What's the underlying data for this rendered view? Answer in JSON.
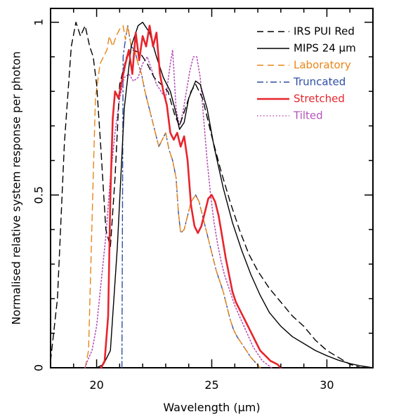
{
  "chart_data": {
    "type": "line",
    "title": "",
    "xlabel": "Wavelength (μm)",
    "ylabel": "Normalised relative system response per photon",
    "xlim": [
      18,
      32
    ],
    "ylim": [
      0,
      1.04
    ],
    "x_ticks": [
      20,
      25,
      30
    ],
    "x_tick_labels": [
      "20",
      "25",
      "30"
    ],
    "y_ticks": [
      0,
      0.5,
      1
    ],
    "y_tick_labels": [
      "0",
      "0.5",
      "1"
    ],
    "grid": false,
    "legend_position": "top-right",
    "series": [
      {
        "name": "IRS PUI Red",
        "color": "#000000",
        "dash": "long-dash",
        "points": [
          [
            18.0,
            0.02
          ],
          [
            18.3,
            0.2
          ],
          [
            18.6,
            0.65
          ],
          [
            18.9,
            0.93
          ],
          [
            19.1,
            1.0
          ],
          [
            19.3,
            0.96
          ],
          [
            19.5,
            0.99
          ],
          [
            19.7,
            0.93
          ],
          [
            19.85,
            0.9
          ],
          [
            20.0,
            0.82
          ],
          [
            20.2,
            0.62
          ],
          [
            20.4,
            0.4
          ],
          [
            20.6,
            0.35
          ],
          [
            20.8,
            0.55
          ],
          [
            21.0,
            0.82
          ],
          [
            21.3,
            0.9
          ],
          [
            21.6,
            0.92
          ],
          [
            21.9,
            0.91
          ],
          [
            22.2,
            0.88
          ],
          [
            22.5,
            0.84
          ],
          [
            22.8,
            0.82
          ],
          [
            23.1,
            0.8
          ],
          [
            23.4,
            0.73
          ],
          [
            23.6,
            0.7
          ],
          [
            23.8,
            0.74
          ],
          [
            24.1,
            0.8
          ],
          [
            24.3,
            0.82
          ],
          [
            24.6,
            0.78
          ],
          [
            25.0,
            0.67
          ],
          [
            25.4,
            0.57
          ],
          [
            25.8,
            0.48
          ],
          [
            26.2,
            0.4
          ],
          [
            26.6,
            0.33
          ],
          [
            27.0,
            0.28
          ],
          [
            27.5,
            0.23
          ],
          [
            28.0,
            0.19
          ],
          [
            28.5,
            0.15
          ],
          [
            29.0,
            0.12
          ],
          [
            29.5,
            0.08
          ],
          [
            30.0,
            0.05
          ],
          [
            30.5,
            0.03
          ],
          [
            31.0,
            0.01
          ],
          [
            31.5,
            0.0
          ]
        ]
      },
      {
        "name": "MIPS 24 μm",
        "color": "#000000",
        "dash": "solid",
        "points": [
          [
            20.0,
            0.0
          ],
          [
            20.3,
            0.01
          ],
          [
            20.6,
            0.05
          ],
          [
            20.9,
            0.35
          ],
          [
            21.2,
            0.75
          ],
          [
            21.5,
            0.93
          ],
          [
            21.8,
            0.99
          ],
          [
            22.0,
            1.0
          ],
          [
            22.3,
            0.97
          ],
          [
            22.6,
            0.9
          ],
          [
            22.9,
            0.84
          ],
          [
            23.2,
            0.8
          ],
          [
            23.4,
            0.75
          ],
          [
            23.6,
            0.69
          ],
          [
            23.8,
            0.71
          ],
          [
            24.0,
            0.78
          ],
          [
            24.3,
            0.83
          ],
          [
            24.5,
            0.82
          ],
          [
            24.8,
            0.75
          ],
          [
            25.1,
            0.64
          ],
          [
            25.5,
            0.52
          ],
          [
            25.9,
            0.42
          ],
          [
            26.3,
            0.34
          ],
          [
            26.7,
            0.27
          ],
          [
            27.1,
            0.21
          ],
          [
            27.5,
            0.16
          ],
          [
            28.0,
            0.12
          ],
          [
            28.5,
            0.09
          ],
          [
            29.0,
            0.07
          ],
          [
            29.5,
            0.05
          ],
          [
            30.0,
            0.035
          ],
          [
            30.5,
            0.022
          ],
          [
            31.0,
            0.012
          ],
          [
            31.5,
            0.005
          ],
          [
            32.0,
            0.0
          ]
        ]
      },
      {
        "name": "Laboratory",
        "color": "#e8861a",
        "dash": "long-dash",
        "points": [
          [
            19.5,
            0.0
          ],
          [
            19.65,
            0.05
          ],
          [
            19.75,
            0.3
          ],
          [
            19.85,
            0.55
          ],
          [
            19.95,
            0.78
          ],
          [
            20.05,
            0.83
          ],
          [
            20.15,
            0.88
          ],
          [
            20.3,
            0.9
          ],
          [
            20.45,
            0.92
          ],
          [
            20.55,
            0.96
          ],
          [
            20.7,
            0.93
          ],
          [
            20.85,
            0.96
          ],
          [
            21.0,
            0.98
          ],
          [
            21.15,
            0.99
          ],
          [
            21.25,
            0.95
          ],
          [
            21.35,
            0.99
          ],
          [
            21.5,
            0.93
          ],
          [
            21.65,
            0.92
          ],
          [
            21.8,
            0.88
          ],
          [
            21.95,
            0.85
          ],
          [
            22.1,
            0.8
          ],
          [
            22.25,
            0.76
          ],
          [
            22.4,
            0.72
          ],
          [
            22.55,
            0.68
          ],
          [
            22.7,
            0.64
          ],
          [
            22.85,
            0.66
          ],
          [
            23.0,
            0.68
          ],
          [
            23.15,
            0.63
          ],
          [
            23.3,
            0.6
          ],
          [
            23.45,
            0.55
          ],
          [
            23.55,
            0.45
          ],
          [
            23.65,
            0.39
          ],
          [
            23.8,
            0.4
          ],
          [
            23.95,
            0.44
          ],
          [
            24.1,
            0.48
          ],
          [
            24.3,
            0.5
          ],
          [
            24.45,
            0.48
          ],
          [
            24.6,
            0.44
          ],
          [
            24.75,
            0.4
          ],
          [
            24.9,
            0.36
          ],
          [
            25.05,
            0.32
          ],
          [
            25.2,
            0.28
          ],
          [
            25.35,
            0.25
          ],
          [
            25.5,
            0.22
          ],
          [
            25.65,
            0.18
          ],
          [
            25.8,
            0.14
          ],
          [
            25.95,
            0.11
          ],
          [
            26.1,
            0.09
          ],
          [
            26.3,
            0.07
          ],
          [
            26.5,
            0.05
          ],
          [
            26.7,
            0.03
          ],
          [
            26.9,
            0.015
          ],
          [
            27.1,
            0.0
          ]
        ]
      },
      {
        "name": "Truncated",
        "color": "#2f4fa3",
        "dash": "dash-dot",
        "points": [
          [
            21.1,
            0.0
          ],
          [
            21.12,
            0.4
          ],
          [
            21.15,
            0.9
          ],
          [
            21.25,
            0.95
          ],
          [
            21.35,
            0.99
          ],
          [
            21.5,
            0.93
          ],
          [
            21.65,
            0.92
          ],
          [
            21.8,
            0.88
          ],
          [
            21.95,
            0.85
          ],
          [
            22.1,
            0.8
          ],
          [
            22.25,
            0.76
          ],
          [
            22.4,
            0.72
          ],
          [
            22.55,
            0.68
          ],
          [
            22.7,
            0.64
          ],
          [
            22.85,
            0.66
          ],
          [
            23.0,
            0.68
          ],
          [
            23.15,
            0.63
          ],
          [
            23.3,
            0.6
          ],
          [
            23.45,
            0.55
          ],
          [
            23.55,
            0.45
          ],
          [
            23.65,
            0.39
          ],
          [
            23.8,
            0.4
          ],
          [
            23.95,
            0.44
          ],
          [
            24.1,
            0.48
          ],
          [
            24.3,
            0.5
          ],
          [
            24.45,
            0.48
          ],
          [
            24.6,
            0.44
          ],
          [
            24.75,
            0.4
          ],
          [
            24.9,
            0.36
          ],
          [
            25.05,
            0.32
          ],
          [
            25.2,
            0.28
          ],
          [
            25.35,
            0.25
          ],
          [
            25.5,
            0.22
          ],
          [
            25.65,
            0.18
          ],
          [
            25.8,
            0.14
          ],
          [
            25.95,
            0.11
          ],
          [
            26.1,
            0.09
          ],
          [
            26.3,
            0.07
          ],
          [
            26.5,
            0.05
          ],
          [
            26.7,
            0.03
          ],
          [
            26.9,
            0.015
          ],
          [
            27.1,
            0.0
          ]
        ]
      },
      {
        "name": "Stretched",
        "color": "#e8242c",
        "dash": "solid-thick",
        "points": [
          [
            20.2,
            0.0
          ],
          [
            20.35,
            0.02
          ],
          [
            20.5,
            0.15
          ],
          [
            20.6,
            0.5
          ],
          [
            20.7,
            0.72
          ],
          [
            20.8,
            0.8
          ],
          [
            20.95,
            0.78
          ],
          [
            21.1,
            0.83
          ],
          [
            21.25,
            0.88
          ],
          [
            21.4,
            0.92
          ],
          [
            21.55,
            0.85
          ],
          [
            21.7,
            0.97
          ],
          [
            21.85,
            0.89
          ],
          [
            22.0,
            0.96
          ],
          [
            22.15,
            0.93
          ],
          [
            22.3,
            0.99
          ],
          [
            22.45,
            0.93
          ],
          [
            22.6,
            0.97
          ],
          [
            22.75,
            0.85
          ],
          [
            22.9,
            0.8
          ],
          [
            23.05,
            0.76
          ],
          [
            23.2,
            0.68
          ],
          [
            23.35,
            0.66
          ],
          [
            23.5,
            0.68
          ],
          [
            23.65,
            0.64
          ],
          [
            23.8,
            0.67
          ],
          [
            23.95,
            0.6
          ],
          [
            24.1,
            0.47
          ],
          [
            24.25,
            0.41
          ],
          [
            24.4,
            0.39
          ],
          [
            24.55,
            0.41
          ],
          [
            24.7,
            0.45
          ],
          [
            24.85,
            0.49
          ],
          [
            25.0,
            0.5
          ],
          [
            25.15,
            0.48
          ],
          [
            25.3,
            0.44
          ],
          [
            25.45,
            0.38
          ],
          [
            25.6,
            0.32
          ],
          [
            25.75,
            0.27
          ],
          [
            25.9,
            0.22
          ],
          [
            26.05,
            0.19
          ],
          [
            26.2,
            0.17
          ],
          [
            26.35,
            0.15
          ],
          [
            26.5,
            0.13
          ],
          [
            26.65,
            0.11
          ],
          [
            26.8,
            0.09
          ],
          [
            26.95,
            0.07
          ],
          [
            27.1,
            0.05
          ],
          [
            27.25,
            0.04
          ],
          [
            27.4,
            0.03
          ],
          [
            27.55,
            0.02
          ],
          [
            27.7,
            0.015
          ],
          [
            27.85,
            0.01
          ],
          [
            28.0,
            0.0
          ]
        ]
      },
      {
        "name": "Tilted",
        "color": "#b554b8",
        "dash": "dotted",
        "points": [
          [
            19.5,
            0.0
          ],
          [
            19.6,
            0.02
          ],
          [
            19.8,
            0.05
          ],
          [
            20.0,
            0.12
          ],
          [
            20.2,
            0.25
          ],
          [
            20.4,
            0.38
          ],
          [
            20.6,
            0.55
          ],
          [
            20.8,
            0.68
          ],
          [
            21.0,
            0.78
          ],
          [
            21.2,
            0.84
          ],
          [
            21.4,
            0.85
          ],
          [
            21.6,
            0.83
          ],
          [
            21.8,
            0.84
          ],
          [
            22.0,
            0.88
          ],
          [
            22.2,
            0.9
          ],
          [
            22.4,
            0.86
          ],
          [
            22.6,
            0.82
          ],
          [
            22.8,
            0.8
          ],
          [
            23.0,
            0.78
          ],
          [
            23.2,
            0.88
          ],
          [
            23.3,
            0.92
          ],
          [
            23.45,
            0.75
          ],
          [
            23.6,
            0.7
          ],
          [
            23.75,
            0.74
          ],
          [
            23.9,
            0.8
          ],
          [
            24.05,
            0.86
          ],
          [
            24.2,
            0.9
          ],
          [
            24.35,
            0.9
          ],
          [
            24.5,
            0.84
          ],
          [
            24.65,
            0.72
          ],
          [
            24.8,
            0.6
          ],
          [
            24.95,
            0.5
          ],
          [
            25.1,
            0.42
          ],
          [
            25.25,
            0.36
          ],
          [
            25.4,
            0.31
          ],
          [
            25.55,
            0.27
          ],
          [
            25.7,
            0.24
          ],
          [
            25.85,
            0.21
          ],
          [
            26.0,
            0.18
          ],
          [
            26.2,
            0.15
          ],
          [
            26.4,
            0.12
          ],
          [
            26.6,
            0.09
          ],
          [
            26.8,
            0.06
          ],
          [
            27.0,
            0.04
          ],
          [
            27.2,
            0.02
          ],
          [
            27.4,
            0.01
          ],
          [
            27.6,
            0.0
          ]
        ]
      }
    ]
  }
}
